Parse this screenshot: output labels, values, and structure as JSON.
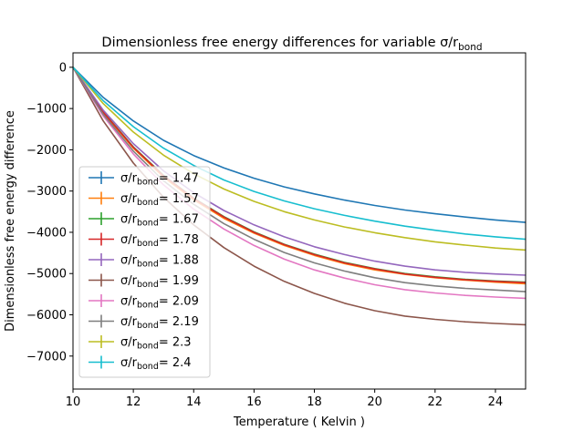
{
  "chart_data": {
    "type": "line",
    "title": "Dimensionless free energy differences for variable σ/r",
    "title_subscript": "bond",
    "xlabel": "Temperature ( Kelvin )",
    "ylabel": "Dimensionless free energy difference",
    "xlim": [
      10,
      25
    ],
    "ylim": [
      -7800,
      350
    ],
    "x_ticks": [
      10,
      12,
      14,
      16,
      18,
      20,
      22,
      24
    ],
    "x_tick_labels": [
      "10",
      "12",
      "14",
      "16",
      "18",
      "20",
      "22",
      "24"
    ],
    "y_ticks": [
      0,
      -1000,
      -2000,
      -3000,
      -4000,
      -5000,
      -6000,
      -7000
    ],
    "y_tick_labels": [
      "0",
      "−1000",
      "−2000",
      "−3000",
      "−4000",
      "−5000",
      "−6000",
      "−7000"
    ],
    "grid": false,
    "legend_position": "lower-left",
    "x": [
      10,
      11,
      12,
      13,
      14,
      15,
      16,
      17,
      18,
      19,
      20,
      21,
      22,
      23,
      24,
      25
    ],
    "series": [
      {
        "name": "σ/r_bond= 1.47",
        "legend_prefix": "σ/r",
        "legend_sub": "bond",
        "legend_suffix": "= 1.47",
        "color": "#1f77b4",
        "values": [
          0,
          -730,
          -1300,
          -1770,
          -2140,
          -2440,
          -2690,
          -2900,
          -3070,
          -3220,
          -3350,
          -3460,
          -3550,
          -3630,
          -3700,
          -3760
        ]
      },
      {
        "name": "σ/r_bond= 1.57",
        "legend_prefix": "σ/r",
        "legend_sub": "bond",
        "legend_suffix": "= 1.57",
        "color": "#ff7f0e",
        "values": [
          0,
          -1100,
          -1960,
          -2660,
          -3210,
          -3660,
          -4020,
          -4320,
          -4560,
          -4760,
          -4910,
          -5020,
          -5100,
          -5160,
          -5210,
          -5250
        ]
      },
      {
        "name": "σ/r_bond= 1.67",
        "legend_prefix": "σ/r",
        "legend_sub": "bond",
        "legend_suffix": "= 1.67",
        "color": "#2ca02c",
        "values": [
          0,
          -1080,
          -1930,
          -2620,
          -3170,
          -3620,
          -3990,
          -4290,
          -4530,
          -4730,
          -4880,
          -5000,
          -5080,
          -5140,
          -5180,
          -5210
        ]
      },
      {
        "name": "σ/r_bond= 1.78",
        "legend_prefix": "σ/r",
        "legend_sub": "bond",
        "legend_suffix": "= 1.78",
        "color": "#d62728",
        "values": [
          0,
          -1090,
          -1940,
          -2630,
          -3180,
          -3630,
          -4000,
          -4300,
          -4540,
          -4740,
          -4890,
          -5010,
          -5090,
          -5150,
          -5190,
          -5220
        ]
      },
      {
        "name": "σ/r_bond= 1.88",
        "legend_prefix": "σ/r",
        "legend_sub": "bond",
        "legend_suffix": "= 1.88",
        "color": "#9467bd",
        "values": [
          0,
          -1040,
          -1850,
          -2510,
          -3040,
          -3470,
          -3820,
          -4110,
          -4350,
          -4540,
          -4700,
          -4820,
          -4910,
          -4970,
          -5010,
          -5040
        ]
      },
      {
        "name": "σ/r_bond= 1.99",
        "legend_prefix": "σ/r",
        "legend_sub": "bond",
        "legend_suffix": "= 1.99",
        "color": "#8c564b",
        "values": [
          0,
          -1300,
          -2320,
          -3150,
          -3820,
          -4370,
          -4820,
          -5190,
          -5480,
          -5720,
          -5900,
          -6030,
          -6110,
          -6170,
          -6210,
          -6240
        ]
      },
      {
        "name": "σ/r_bond= 2.09",
        "legend_prefix": "σ/r",
        "legend_sub": "bond",
        "legend_suffix": "= 2.09",
        "color": "#e377c2",
        "values": [
          0,
          -1180,
          -2100,
          -2850,
          -3440,
          -3920,
          -4320,
          -4650,
          -4910,
          -5110,
          -5270,
          -5390,
          -5470,
          -5530,
          -5570,
          -5600
        ]
      },
      {
        "name": "σ/r_bond= 2.19",
        "legend_prefix": "σ/r",
        "legend_sub": "bond",
        "legend_suffix": "= 2.19",
        "color": "#7f7f7f",
        "values": [
          0,
          -1140,
          -2030,
          -2750,
          -3320,
          -3790,
          -4170,
          -4490,
          -4740,
          -4940,
          -5100,
          -5220,
          -5300,
          -5360,
          -5400,
          -5440
        ]
      },
      {
        "name": "σ/r_bond= 2.3",
        "legend_prefix": "σ/r",
        "legend_sub": "bond",
        "legend_suffix": "= 2.3",
        "color": "#bcbd22",
        "values": [
          0,
          -880,
          -1570,
          -2130,
          -2580,
          -2950,
          -3250,
          -3500,
          -3700,
          -3870,
          -4010,
          -4130,
          -4230,
          -4310,
          -4380,
          -4430
        ]
      },
      {
        "name": "σ/r_bond= 2.4",
        "legend_prefix": "σ/r",
        "legend_sub": "bond",
        "legend_suffix": "= 2.4",
        "color": "#17becf",
        "values": [
          0,
          -810,
          -1440,
          -1960,
          -2380,
          -2730,
          -3010,
          -3240,
          -3430,
          -3590,
          -3730,
          -3850,
          -3950,
          -4040,
          -4110,
          -4170
        ]
      }
    ]
  }
}
